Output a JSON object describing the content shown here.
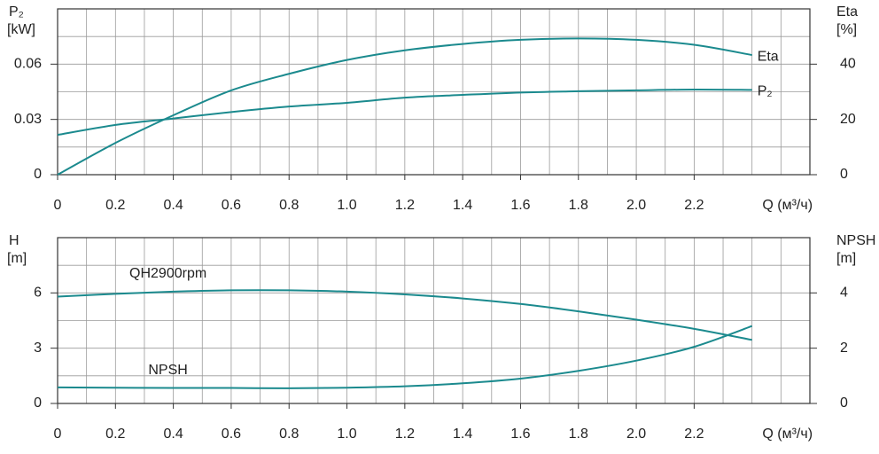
{
  "chart_data": [
    {
      "type": "line",
      "ylabel": "P₂",
      "yunit": "[kW]",
      "y2label": "Eta",
      "y2unit": "[%]",
      "xlabel": "Q (м³/ч)",
      "xlim": [
        0,
        2.6
      ],
      "xticks": [
        0,
        0.2,
        0.4,
        0.6,
        0.8,
        {
          "value": 1,
          "label": "1.0"
        },
        1.2,
        1.4,
        1.6,
        1.8,
        {
          "value": 2,
          "label": "2.0"
        },
        2.2
      ],
      "xgrid": [
        0,
        0.1,
        0.2,
        0.3,
        0.4,
        0.5,
        0.6,
        0.7,
        0.8,
        0.9,
        1,
        1.1,
        1.2,
        1.3,
        1.4,
        1.5,
        1.6,
        1.7,
        1.8,
        1.9,
        2,
        2.1,
        2.2,
        2.3,
        2.4,
        2.5,
        2.6
      ],
      "ylim": [
        0,
        0.09
      ],
      "yticks": [
        0,
        0.03,
        0.06
      ],
      "ygrid": [
        0,
        0.015,
        0.03,
        0.045,
        0.06,
        0.075,
        0.09
      ],
      "y2lim": [
        0,
        60
      ],
      "y2ticks": [
        0,
        20,
        40
      ],
      "label_position": "end",
      "x": [
        0,
        0.2,
        0.4,
        0.6,
        0.8,
        1,
        1.2,
        1.4,
        1.6,
        1.8,
        2,
        2.2,
        2.4
      ],
      "series": [
        {
          "name": "Eta",
          "color": "#1b8a8e",
          "axis": "y2",
          "values": [
            0,
            11.5,
            21.5,
            30.5,
            36.5,
            41.5,
            45,
            47.3,
            48.8,
            49.3,
            48.8,
            47,
            43.3
          ]
        },
        {
          "name": "P₂",
          "color": "#1b8a8e",
          "values": [
            0.0216,
            0.027,
            0.0305,
            0.034,
            0.037,
            0.039,
            0.0418,
            0.0433,
            0.0446,
            0.0453,
            0.0458,
            0.0462,
            0.046
          ]
        }
      ]
    },
    {
      "type": "line",
      "ylabel": "H",
      "yunit": "[m]",
      "y2label": "NPSH",
      "y2unit": "[m]",
      "xlabel": "Q (м³/ч)",
      "xlim": [
        0,
        2.6
      ],
      "xticks": [
        0,
        0.2,
        0.4,
        0.6,
        0.8,
        {
          "value": 1,
          "label": "1.0"
        },
        1.2,
        1.4,
        1.6,
        1.8,
        {
          "value": 2,
          "label": "2.0"
        },
        2.2
      ],
      "xgrid": [
        0,
        0.1,
        0.2,
        0.3,
        0.4,
        0.5,
        0.6,
        0.7,
        0.8,
        0.9,
        1,
        1.1,
        1.2,
        1.3,
        1.4,
        1.5,
        1.6,
        1.7,
        1.8,
        1.9,
        2,
        2.1,
        2.2,
        2.3,
        2.4,
        2.5,
        2.6
      ],
      "ylim": [
        0,
        9
      ],
      "yticks": [
        0,
        3,
        6
      ],
      "ygrid": [
        0,
        1.5,
        3,
        4.5,
        6,
        7.5,
        9
      ],
      "y2lim": [
        0,
        6
      ],
      "y2ticks": [
        0,
        2,
        4
      ],
      "label_position": "start",
      "x": [
        0,
        0.2,
        0.4,
        0.6,
        0.8,
        1,
        1.2,
        1.4,
        1.6,
        1.8,
        2,
        2.2,
        2.4
      ],
      "series": [
        {
          "name": "QH2900rpm",
          "color": "#1b8a8e",
          "values": [
            5.8,
            5.95,
            6.07,
            6.14,
            6.14,
            6.07,
            5.92,
            5.7,
            5.4,
            5.0,
            4.55,
            4.05,
            3.45
          ]
        },
        {
          "name": "NPSH",
          "color": "#1b8a8e",
          "axis": "y2",
          "values": [
            0.58,
            0.57,
            0.56,
            0.56,
            0.55,
            0.57,
            0.62,
            0.73,
            0.9,
            1.18,
            1.55,
            2.05,
            2.8
          ]
        }
      ]
    }
  ]
}
